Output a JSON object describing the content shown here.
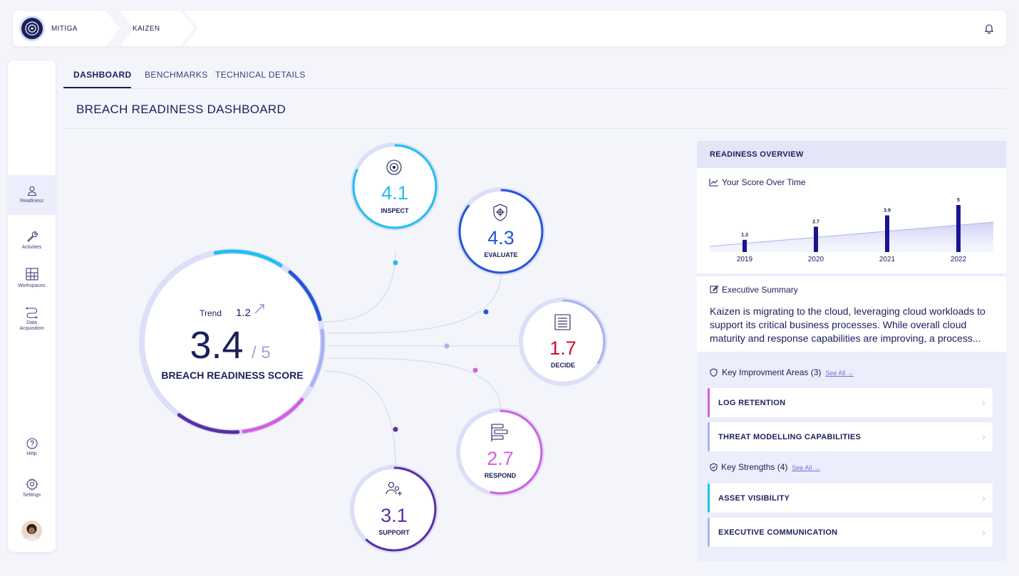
{
  "breadcrumb": {
    "org": "MITIGA",
    "project": "KAIZEN"
  },
  "sidebar": {
    "items": [
      {
        "label": "Readiness"
      },
      {
        "label": "Activities"
      },
      {
        "label": "Workspaces"
      },
      {
        "label": "Data Acquisition"
      },
      {
        "label": "Help"
      },
      {
        "label": "Settings"
      }
    ]
  },
  "tabs": [
    "DASHBOARD",
    "BENCHMARKS",
    "TECHNICAL DETAILS"
  ],
  "page_title": "BREACH READINESS DASHBOARD",
  "score": {
    "trend_label": "Trend",
    "trend_value": "1.2",
    "value": "3.4",
    "max": "/ 5",
    "label": "BREACH READINESS SCORE"
  },
  "categories": [
    {
      "label": "INSPECT",
      "value": "4.1",
      "color": "#1ec0f0",
      "fraction": 0.82
    },
    {
      "label": "EVALUATE",
      "value": "4.3",
      "color": "#2457d8",
      "fraction": 0.86
    },
    {
      "label": "DECIDE",
      "value": "1.7",
      "color": "#c9102e",
      "fraction": 0.34
    },
    {
      "label": "RESPOND",
      "value": "2.7",
      "color": "#d35fe0",
      "fraction": 0.54
    },
    {
      "label": "SUPPORT",
      "value": "3.1",
      "color": "#5a2fa3",
      "fraction": 0.62
    }
  ],
  "overview": {
    "title": "READINESS OVERVIEW",
    "chart_title": "Your Score Over Time",
    "summary_title": "Executive Summary",
    "summary": "Kaizen is migrating to the cloud, leveraging cloud workloads to support its critical business processes. While overall cloud maturity and response capabilities are improving, a process...",
    "improvement": {
      "title": "Key Improvment Areas (3)",
      "see_all": "See All →",
      "items": [
        "LOG RETENTION",
        "THREAT MODELLING CAPABILITIES"
      ]
    },
    "strengths": {
      "title": "Key Strengths (4)",
      "see_all": "See All →",
      "items": [
        "ASSET VISIBILITY",
        "EXECUTIVE COMMUNICATION"
      ]
    }
  },
  "chart_data": {
    "type": "bar",
    "title": "Your Score Over Time",
    "categories": [
      "2019",
      "2020",
      "2021",
      "2022"
    ],
    "values": [
      1.3,
      2.7,
      3.9,
      5
    ],
    "value_labels": [
      "1.3",
      "2.7",
      "3.9",
      "5"
    ],
    "ylim": [
      0,
      5
    ],
    "xlabel": "",
    "ylabel": ""
  },
  "colors": {
    "navy": "#1b1f5c",
    "inspect": "#1ec0f0",
    "evaluate": "#2457d8",
    "decide": "#c9102e",
    "respond": "#d35fe0",
    "support": "#5a2fa3",
    "improvement_bar_1": "#d35fe0",
    "improvement_bar_2": "#a9b3f0",
    "strength_bar_1": "#1ec0f0",
    "strength_bar_2": "#a9b3f0"
  }
}
